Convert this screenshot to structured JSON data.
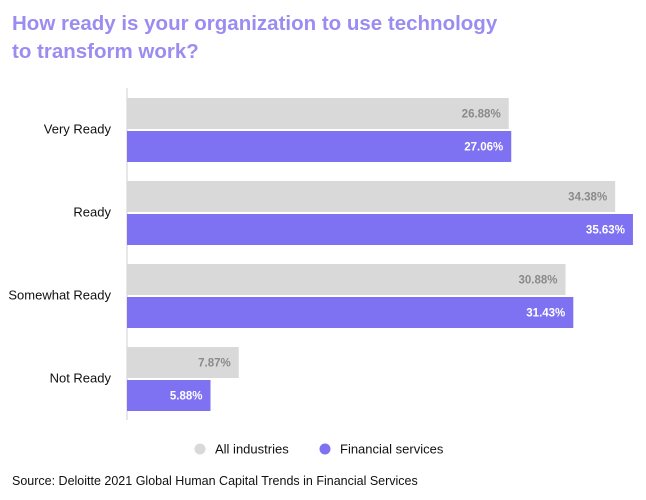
{
  "title_lines": [
    "How ready is your organization to use technology",
    "to transform work?"
  ],
  "source": "Source: Deloitte 2021 Global Human Capital Trends in Financial Services",
  "colors": {
    "title": "#9b8cf2",
    "all_industries": "#d9d9d9",
    "financial_services": "#7e71f2",
    "all_label": "#8a8a8a",
    "fin_label": "#ffffff"
  },
  "chart_data": {
    "type": "bar",
    "orientation": "horizontal",
    "categories": [
      "Very Ready",
      "Ready",
      "Somewhat Ready",
      "Not Ready"
    ],
    "series": [
      {
        "name": "All industries",
        "values": [
          26.88,
          34.38,
          30.88,
          7.87
        ],
        "labels": [
          "26.88%",
          "34.38%",
          "30.88%",
          "7.87%"
        ]
      },
      {
        "name": "Financial services",
        "values": [
          27.06,
          35.63,
          31.43,
          5.88
        ],
        "labels": [
          "27.06%",
          "35.63%",
          "31.43%",
          "5.88%"
        ]
      }
    ],
    "legend_position": "bottom",
    "grid": false
  }
}
